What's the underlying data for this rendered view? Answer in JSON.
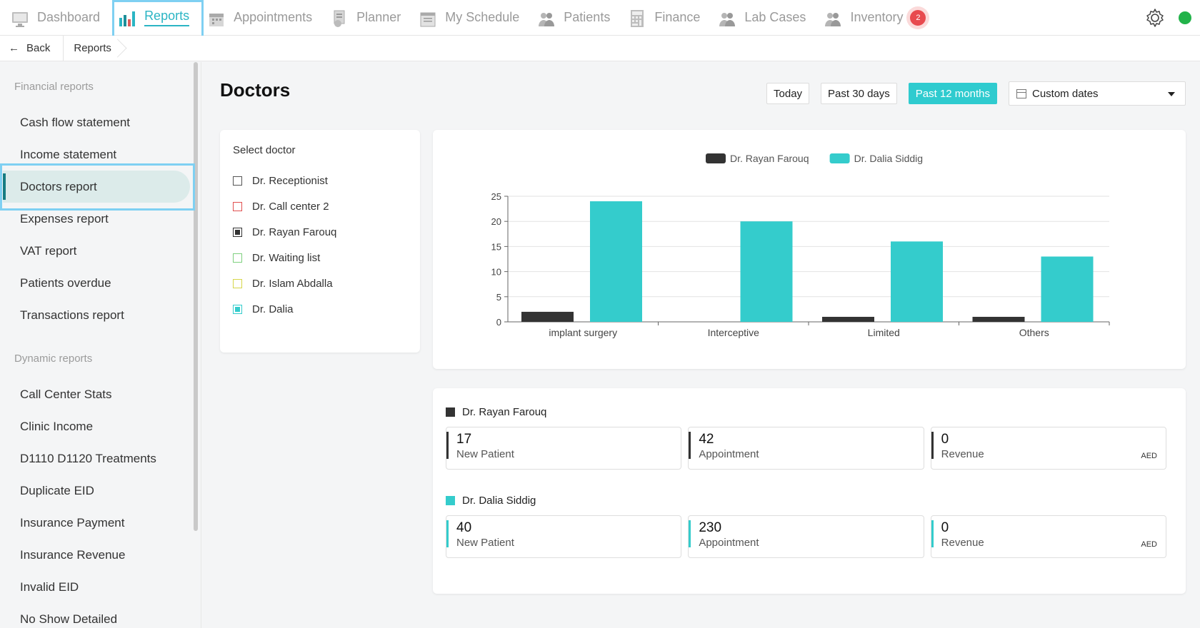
{
  "nav": {
    "items": [
      {
        "label": "Dashboard",
        "icon": "monitor-icon"
      },
      {
        "label": "Reports",
        "icon": "bar-chart-icon",
        "active": true
      },
      {
        "label": "Appointments",
        "icon": "calendar-icon"
      },
      {
        "label": "Planner",
        "icon": "planner-icon"
      },
      {
        "label": "My Schedule",
        "icon": "schedule-icon"
      },
      {
        "label": "Patients",
        "icon": "people-icon"
      },
      {
        "label": "Finance",
        "icon": "calculator-icon"
      },
      {
        "label": "Lab Cases",
        "icon": "people-icon"
      },
      {
        "label": "Inventory",
        "icon": "people-icon"
      }
    ],
    "inventory_badge": "2",
    "settings_icon": "gear-icon",
    "status_color": "#22b34a"
  },
  "breadcrumb": {
    "back_label": "Back",
    "current": "Reports"
  },
  "sidebar": {
    "financial_title": "Financial reports",
    "financial_items": [
      "Cash flow statement",
      "Income statement",
      "Doctors report",
      "Expenses report",
      "VAT report",
      "Patients overdue",
      "Transactions report"
    ],
    "active_item": "Doctors report",
    "dynamic_title": "Dynamic reports",
    "dynamic_items": [
      "Call Center Stats",
      "Clinic Income",
      "D1110 D1120 Treatments",
      "Duplicate EID",
      "Insurance Payment",
      "Insurance Revenue",
      "Invalid EID",
      "No Show Detailed"
    ]
  },
  "main": {
    "title": "Doctors",
    "date_buttons": [
      "Today",
      "Past 30 days",
      "Past 12 months"
    ],
    "active_range": "Past 12 months",
    "custom_dates_label": "Custom dates"
  },
  "doctor_select": {
    "title": "Select doctor",
    "doctors": [
      {
        "name": "Dr. Receptionist",
        "color": "#555555",
        "checked": false
      },
      {
        "name": "Dr. Call center 2",
        "color": "#e05050",
        "checked": false
      },
      {
        "name": "Dr. Rayan Farouq",
        "color": "#333333",
        "checked": true
      },
      {
        "name": "Dr. Waiting list",
        "color": "#7ed07e",
        "checked": false
      },
      {
        "name": "Dr. Islam Abdalla",
        "color": "#d6d64a",
        "checked": false
      },
      {
        "name": "Dr. Dalia",
        "color": "#34cccc",
        "checked": true
      }
    ]
  },
  "chart_data": {
    "type": "bar",
    "categories": [
      "implant surgery",
      "Interceptive",
      "Limited",
      "Others"
    ],
    "series": [
      {
        "name": "Dr. Rayan Farouq",
        "color": "#333333",
        "values": [
          2,
          0,
          1,
          1
        ]
      },
      {
        "name": "Dr. Dalia Siddig",
        "color": "#34cccc",
        "values": [
          24,
          20,
          16,
          13
        ]
      }
    ],
    "ylim": [
      0,
      25
    ],
    "yticks": [
      0,
      5,
      10,
      15,
      20,
      25
    ],
    "grid": true,
    "legend": "top-center"
  },
  "stats": [
    {
      "doctor": "Dr. Rayan Farouq",
      "color": "#333333",
      "new_patient": "17",
      "new_patient_label": "New Patient",
      "appointment": "42",
      "appointment_label": "Appointment",
      "revenue": "0",
      "revenue_label": "Revenue",
      "currency": "AED"
    },
    {
      "doctor": "Dr. Dalia Siddig",
      "color": "#34cccc",
      "new_patient": "40",
      "new_patient_label": "New Patient",
      "appointment": "230",
      "appointment_label": "Appointment",
      "revenue": "0",
      "revenue_label": "Revenue",
      "currency": "AED"
    }
  ]
}
